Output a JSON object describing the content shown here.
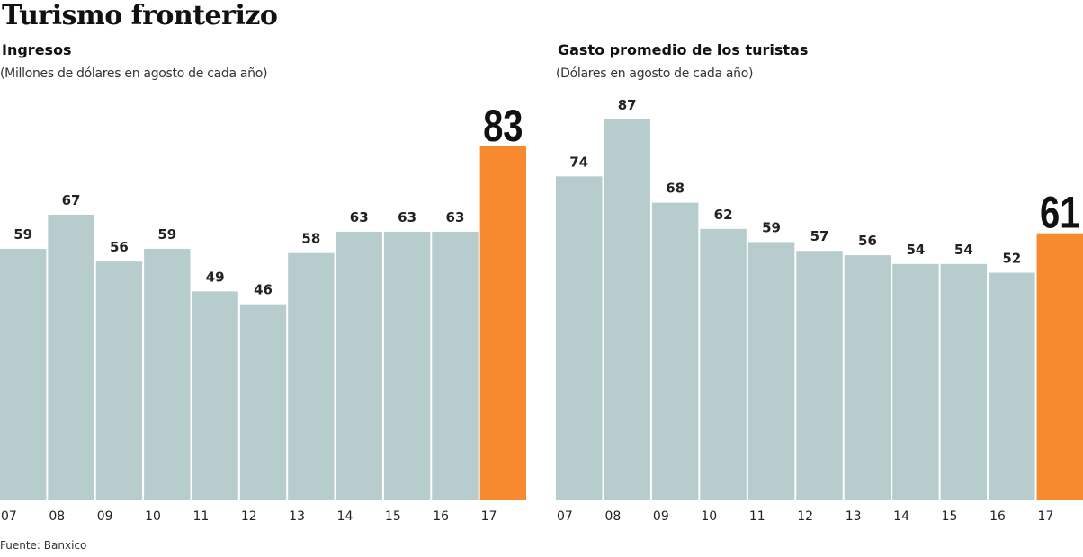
{
  "title": "Turismo fronterizo",
  "source": "Fuente: Banxico",
  "chart_data": [
    {
      "type": "bar",
      "title": "Ingresos",
      "subtitle": "(Millones de dólares en agosto de cada año)",
      "categories": [
        "07",
        "08",
        "09",
        "10",
        "11",
        "12",
        "13",
        "14",
        "15",
        "16",
        "17"
      ],
      "values": [
        59,
        67,
        56,
        59,
        49,
        46,
        58,
        63,
        63,
        63,
        83
      ],
      "ylim": [
        0,
        83
      ],
      "grid": false,
      "colors": {
        "default": "#b7cccc",
        "highlight": "#f7892f"
      },
      "highlight_index": 10
    },
    {
      "type": "bar",
      "title": "Gasto promedio de los turistas",
      "subtitle": "(Dólares en agosto de cada año)",
      "categories": [
        "07",
        "08",
        "09",
        "10",
        "11",
        "12",
        "13",
        "14",
        "15",
        "16",
        "17"
      ],
      "values": [
        74,
        87,
        68,
        62,
        59,
        57,
        56,
        54,
        54,
        52,
        61
      ],
      "ylim": [
        0,
        87
      ],
      "grid": false,
      "colors": {
        "default": "#b7cccc",
        "highlight": "#f7892f"
      },
      "highlight_index": 10
    }
  ]
}
